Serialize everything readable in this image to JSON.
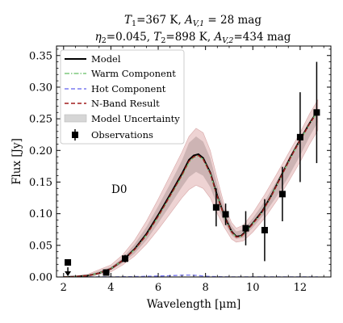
{
  "chart_data": {
    "type": "line",
    "title_line1": "T_1=367 K, A_V,1=28 mag",
    "title_line2": "η_2=0.045, T_2=898 K, A_V,2=434 mag",
    "title_parts": {
      "t1_sym": "T",
      "t1_sub": "1",
      "t1_val": "=367 K, ",
      "av1_sym": "A",
      "av1_sub": "V,1",
      "av1_val": " = 28 mag",
      "eta_sym": "η",
      "eta_sub": "2",
      "eta_val": "=0.045, ",
      "t2_sym": "T",
      "t2_sub": "2",
      "t2_val": "=898 K, ",
      "av2_sym": "A",
      "av2_sub": "V,2",
      "av2_val": "=434 mag"
    },
    "xlabel": "Wavelength [μm]",
    "ylabel": "Flux [Jy]",
    "annotation": "D0",
    "xlim": [
      1.7,
      13.3
    ],
    "ylim": [
      0,
      0.365
    ],
    "xticks": [
      2,
      4,
      6,
      8,
      10,
      12
    ],
    "yticks": [
      0.0,
      0.05,
      0.1,
      0.15,
      0.2,
      0.25,
      0.3,
      0.35
    ],
    "legend": {
      "placement": "upper-left",
      "entries": [
        {
          "label": "Model",
          "style": "solid",
          "color": "#000000"
        },
        {
          "label": "Warm Component",
          "style": "dashdot",
          "color": "#7dc97d"
        },
        {
          "label": "Hot Component",
          "style": "dashed",
          "color": "#7b7bf0"
        },
        {
          "label": "N-Band Result",
          "style": "dashed",
          "color": "#a01c1c"
        },
        {
          "label": "Model Uncertainty",
          "style": "band",
          "color": "#c8c8c8"
        },
        {
          "label": "Observations",
          "style": "errorbar",
          "color": "#000000"
        }
      ]
    },
    "model": {
      "x": [
        2.0,
        2.5,
        3.0,
        3.5,
        4.0,
        4.5,
        5.0,
        5.5,
        6.0,
        6.5,
        7.0,
        7.3,
        7.5,
        7.7,
        7.9,
        8.2,
        8.5,
        8.8,
        9.1,
        9.3,
        9.5,
        9.7,
        10.0,
        10.4,
        10.8,
        11.2,
        11.6,
        12.0,
        12.4,
        12.75
      ],
      "y": [
        0.0,
        0.0005,
        0.002,
        0.006,
        0.013,
        0.026,
        0.044,
        0.068,
        0.098,
        0.13,
        0.163,
        0.185,
        0.192,
        0.194,
        0.188,
        0.165,
        0.128,
        0.096,
        0.072,
        0.064,
        0.065,
        0.072,
        0.085,
        0.104,
        0.13,
        0.16,
        0.19,
        0.217,
        0.243,
        0.263
      ]
    },
    "warm_component": {
      "x": [
        2.0,
        2.5,
        3.0,
        3.5,
        4.0,
        4.5,
        5.0,
        5.5,
        6.0,
        6.5,
        7.0,
        7.3,
        7.5,
        7.7,
        7.9,
        8.2,
        8.5,
        8.8,
        9.1,
        9.3,
        9.5,
        9.7,
        10.0,
        10.4,
        10.8,
        11.2,
        11.6,
        12.0,
        12.4,
        12.75
      ],
      "y": [
        0.0,
        0.0005,
        0.002,
        0.006,
        0.013,
        0.026,
        0.043,
        0.066,
        0.095,
        0.127,
        0.159,
        0.181,
        0.189,
        0.191,
        0.186,
        0.163,
        0.127,
        0.095,
        0.071,
        0.063,
        0.064,
        0.071,
        0.084,
        0.103,
        0.129,
        0.159,
        0.189,
        0.216,
        0.242,
        0.262
      ]
    },
    "nband_result": {
      "x": [
        2.0,
        2.5,
        3.0,
        3.5,
        4.0,
        4.5,
        5.0,
        5.5,
        6.0,
        6.5,
        7.0,
        7.3,
        7.5,
        7.7,
        7.9,
        8.2,
        8.5,
        8.8,
        9.1,
        9.3,
        9.5,
        9.7,
        10.0,
        10.4,
        10.8,
        11.2,
        11.6,
        12.0,
        12.4,
        12.75
      ],
      "y": [
        0.0,
        0.0005,
        0.002,
        0.006,
        0.013,
        0.026,
        0.043,
        0.066,
        0.096,
        0.128,
        0.161,
        0.183,
        0.19,
        0.192,
        0.186,
        0.164,
        0.127,
        0.095,
        0.071,
        0.063,
        0.064,
        0.071,
        0.084,
        0.103,
        0.129,
        0.159,
        0.189,
        0.216,
        0.242,
        0.262
      ]
    },
    "hot_component": {
      "x": [
        2.0,
        3.0,
        4.0,
        5.0,
        6.0,
        6.5,
        7.0,
        7.3,
        7.6,
        8.0,
        8.5,
        9.0,
        10.0,
        11.0,
        12.0,
        12.75
      ],
      "y": [
        0.0,
        0.0,
        0.0,
        0.0005,
        0.0015,
        0.002,
        0.0028,
        0.003,
        0.0025,
        0.0012,
        0.0004,
        0.0001,
        0.0,
        0.0,
        0.0,
        0.0
      ]
    },
    "model_uncertainty": {
      "x": [
        2.0,
        3.0,
        4.0,
        4.5,
        5.0,
        5.5,
        6.0,
        6.5,
        7.0,
        7.3,
        7.6,
        7.9,
        8.2,
        8.5,
        8.8,
        9.1,
        9.3,
        9.6,
        10.0,
        10.5,
        11.0,
        11.5,
        12.0,
        12.4,
        12.75
      ],
      "lower": [
        0.0,
        0.001,
        0.011,
        0.022,
        0.037,
        0.058,
        0.085,
        0.113,
        0.142,
        0.158,
        0.166,
        0.16,
        0.142,
        0.112,
        0.086,
        0.066,
        0.06,
        0.062,
        0.078,
        0.1,
        0.127,
        0.158,
        0.192,
        0.222,
        0.245
      ],
      "upper": [
        0.0,
        0.003,
        0.016,
        0.03,
        0.052,
        0.079,
        0.112,
        0.147,
        0.184,
        0.212,
        0.222,
        0.214,
        0.188,
        0.145,
        0.107,
        0.081,
        0.072,
        0.075,
        0.093,
        0.12,
        0.151,
        0.182,
        0.215,
        0.243,
        0.264
      ]
    },
    "model_uncertainty_outer": {
      "x": [
        2.0,
        3.0,
        4.0,
        4.5,
        5.0,
        5.5,
        6.0,
        6.5,
        7.0,
        7.3,
        7.6,
        7.9,
        8.2,
        8.5,
        8.8,
        9.1,
        9.3,
        9.6,
        10.0,
        10.5,
        11.0,
        11.5,
        12.0,
        12.4,
        12.75
      ],
      "lower": [
        0.0,
        0.0,
        0.008,
        0.019,
        0.033,
        0.052,
        0.075,
        0.1,
        0.125,
        0.138,
        0.145,
        0.14,
        0.125,
        0.1,
        0.078,
        0.06,
        0.055,
        0.057,
        0.071,
        0.093,
        0.12,
        0.15,
        0.182,
        0.21,
        0.232
      ],
      "upper": [
        0.0,
        0.004,
        0.019,
        0.035,
        0.058,
        0.088,
        0.123,
        0.16,
        0.197,
        0.222,
        0.235,
        0.228,
        0.2,
        0.155,
        0.113,
        0.086,
        0.077,
        0.082,
        0.101,
        0.13,
        0.162,
        0.195,
        0.228,
        0.258,
        0.28
      ]
    },
    "observations": [
      {
        "x": 2.18,
        "y": 0.023,
        "upper_limit": true
      },
      {
        "x": 3.8,
        "y": 0.007,
        "err": 0.003
      },
      {
        "x": 4.6,
        "y": 0.029,
        "err": 0.006
      },
      {
        "x": 8.45,
        "y": 0.11,
        "err": 0.03
      },
      {
        "x": 8.85,
        "y": 0.099,
        "err": 0.017
      },
      {
        "x": 9.7,
        "y": 0.077,
        "err": 0.027
      },
      {
        "x": 10.5,
        "y": 0.074,
        "err": 0.049
      },
      {
        "x": 11.25,
        "y": 0.131,
        "err": 0.043
      },
      {
        "x": 12.0,
        "y": 0.221,
        "err": 0.071
      },
      {
        "x": 12.7,
        "y": 0.26,
        "err": 0.08
      }
    ],
    "colors": {
      "model": "#000000",
      "warm": "#7dc97d",
      "hot": "#7b7bf0",
      "nband": "#a01c1c",
      "band_inner": "#bfa7a7",
      "band_outer": "#e8c4c4"
    }
  }
}
